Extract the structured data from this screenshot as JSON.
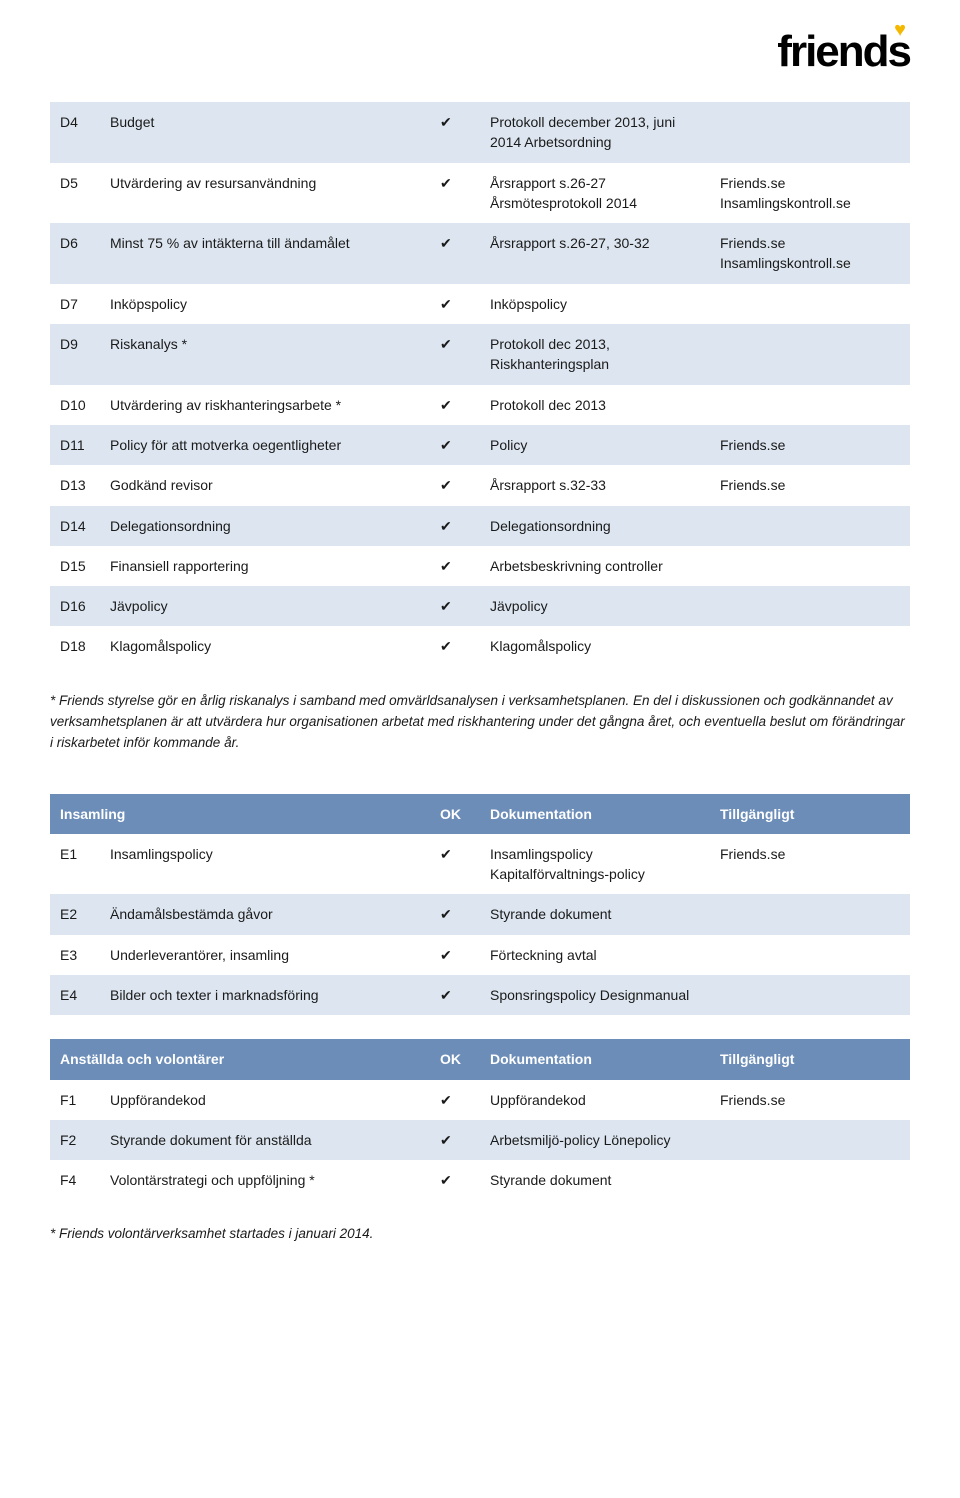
{
  "logo_text": "friends",
  "colors": {
    "row_odd": "#dde6f0",
    "row_even": "#ffffff",
    "header_bg": "#6b8db8",
    "header_fg": "#ffffff",
    "logo_heart": "#f5b800"
  },
  "checkmark": "✔",
  "table1": {
    "rows": [
      {
        "code": "D4",
        "desc": "Budget",
        "ok": true,
        "doc": "Protokoll december 2013, juni 2014 Arbetsordning",
        "avail": ""
      },
      {
        "code": "D5",
        "desc": "Utvärdering av resursanvändning",
        "ok": true,
        "doc": "Årsrapport s.26-27 Årsmötesprotokoll 2014",
        "avail": "Friends.se Insamlingskontroll.se"
      },
      {
        "code": "D6",
        "desc": "Minst 75 % av intäkterna till ändamålet",
        "ok": true,
        "doc": "Årsrapport s.26-27, 30-32",
        "avail": "Friends.se Insamlingskontroll.se"
      },
      {
        "code": "D7",
        "desc": "Inköpspolicy",
        "ok": true,
        "doc": "Inköpspolicy",
        "avail": ""
      },
      {
        "code": "D9",
        "desc": "Riskanalys *",
        "ok": true,
        "doc": "Protokoll dec 2013, Riskhanteringsplan",
        "avail": ""
      },
      {
        "code": "D10",
        "desc": "Utvärdering av riskhanteringsarbete *",
        "ok": true,
        "doc": "Protokoll dec 2013",
        "avail": ""
      },
      {
        "code": "D11",
        "desc": "Policy för att motverka oegentligheter",
        "ok": true,
        "doc": "Policy",
        "avail": "Friends.se"
      },
      {
        "code": "D13",
        "desc": "Godkänd revisor",
        "ok": true,
        "doc": "Årsrapport s.32-33",
        "avail": "Friends.se"
      },
      {
        "code": "D14",
        "desc": "Delegationsordning",
        "ok": true,
        "doc": "Delegationsordning",
        "avail": ""
      },
      {
        "code": "D15",
        "desc": "Finansiell rapportering",
        "ok": true,
        "doc": "Arbetsbeskrivning controller",
        "avail": ""
      },
      {
        "code": "D16",
        "desc": "Jävpolicy",
        "ok": true,
        "doc": "Jävpolicy",
        "avail": ""
      },
      {
        "code": "D18",
        "desc": "Klagomålspolicy",
        "ok": true,
        "doc": "Klagomålspolicy",
        "avail": ""
      }
    ]
  },
  "footnote1": "* Friends styrelse gör en årlig riskanalys i samband med omvärldsanalysen i verksamhetsplanen. En del i diskussionen och godkännandet av verksamhetsplanen är att utvärdera hur organisationen arbetat med riskhantering under det gångna året, och eventuella beslut om förändringar i riskarbetet inför kommande år.",
  "table2": {
    "header": {
      "c1": "Insamling",
      "c2": "",
      "c3": "OK",
      "c4": "Dokumentation",
      "c5": "Tillgängligt"
    },
    "rows": [
      {
        "code": "E1",
        "desc": "Insamlingspolicy",
        "ok": true,
        "doc": "Insamlingspolicy Kapitalförvaltnings-policy",
        "avail": "Friends.se"
      },
      {
        "code": "E2",
        "desc": "Ändamålsbestämda gåvor",
        "ok": true,
        "doc": "Styrande dokument",
        "avail": ""
      },
      {
        "code": "E3",
        "desc": "Underleverantörer, insamling",
        "ok": true,
        "doc": "Förteckning avtal",
        "avail": ""
      },
      {
        "code": "E4",
        "desc": "Bilder och texter i marknadsföring",
        "ok": true,
        "doc": "Sponsringspolicy Designmanual",
        "avail": ""
      }
    ]
  },
  "table3": {
    "header": {
      "c1": "Anställda och volontärer",
      "c2": "",
      "c3": "OK",
      "c4": "Dokumentation",
      "c5": "Tillgängligt"
    },
    "rows": [
      {
        "code": "F1",
        "desc": "Uppförandekod",
        "ok": true,
        "doc": "Uppförandekod",
        "avail": "Friends.se"
      },
      {
        "code": "F2",
        "desc": "Styrande dokument för anställda",
        "ok": true,
        "doc": "Arbetsmiljö-policy Lönepolicy",
        "avail": ""
      },
      {
        "code": "F4",
        "desc": "Volontärstrategi och uppföljning *",
        "ok": true,
        "doc": "Styrande dokument",
        "avail": ""
      }
    ]
  },
  "footnote2": "* Friends volontärverksamhet startades i januari 2014."
}
